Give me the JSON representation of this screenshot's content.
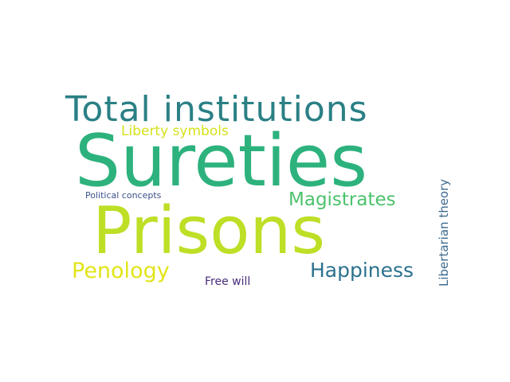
{
  "words": [
    {
      "text": "Total institutions",
      "color": "#2a8085"
    },
    {
      "text": "Sureties",
      "color": "#2db27d"
    },
    {
      "text": "Prisons",
      "color": "#bddf26"
    },
    {
      "text": "Liberty symbols",
      "color": "#d5e21a"
    },
    {
      "text": "Magistrates",
      "color": "#4cc26c"
    },
    {
      "text": "Political concepts",
      "color": "#3b528b"
    },
    {
      "text": "Penology",
      "color": "#e2e418"
    },
    {
      "text": "Happiness",
      "color": "#2c728e"
    },
    {
      "text": "Free will",
      "color": "#472d7b"
    },
    {
      "text": "Libertarian theory",
      "color": "#3d6a8f"
    }
  ]
}
